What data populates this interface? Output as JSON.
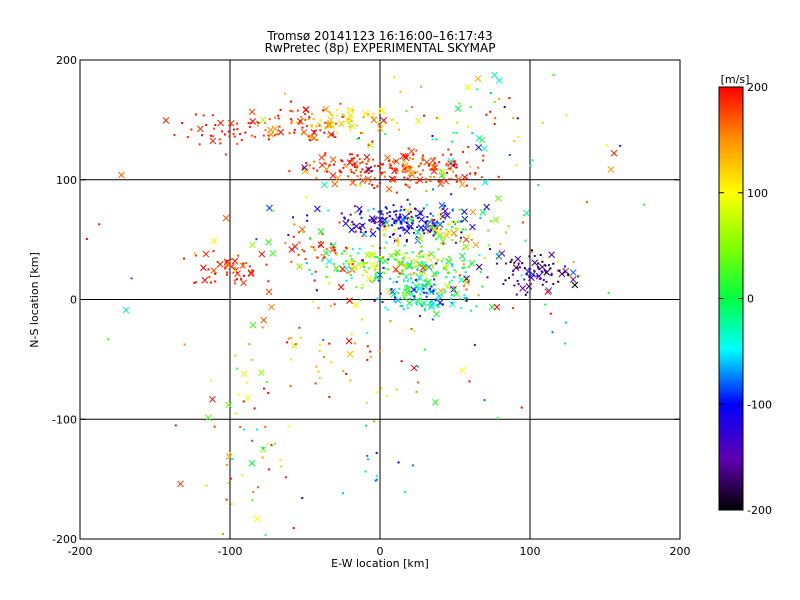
{
  "chart_data": {
    "type": "scatter",
    "title": "Tromsø 20141123 16:16:00–16:17:43",
    "subtitle": "RwPretec (8p) EXPERIMENTAL SKYMAP",
    "xlabel": "E-W location [km]",
    "ylabel": "N-S location [km]",
    "xlim": [
      -200,
      200
    ],
    "ylim": [
      -200,
      200
    ],
    "xticks": [
      "-200",
      "-100",
      "0",
      "100",
      "200"
    ],
    "yticks": [
      "-200",
      "-100",
      "0",
      "100",
      "200"
    ],
    "grid": true,
    "colorbar": {
      "label": "[m/s]",
      "range": [
        -200,
        200
      ],
      "ticks": [
        "200",
        "100",
        "0",
        "-100",
        "-200"
      ],
      "colormap": "rainbow (black at -200, blue at -100, green at 0, yellow at 100, red at 200)"
    },
    "marker_types": [
      "small dot",
      "x cross"
    ],
    "clusters": [
      {
        "x": 0,
        "y": 110,
        "sx": 28,
        "sy": 7,
        "v": 185,
        "sv": 20,
        "n": 160
      },
      {
        "x": 35,
        "y": 105,
        "sx": 18,
        "sy": 6,
        "v": 175,
        "sv": 25,
        "n": 60
      },
      {
        "x": -55,
        "y": 145,
        "sx": 16,
        "sy": 8,
        "v": 175,
        "sv": 25,
        "n": 70
      },
      {
        "x": -25,
        "y": 150,
        "sx": 18,
        "sy": 6,
        "v": 125,
        "sv": 25,
        "n": 60
      },
      {
        "x": -110,
        "y": 140,
        "sx": 14,
        "sy": 7,
        "v": 190,
        "sv": 10,
        "n": 40
      },
      {
        "x": 15,
        "y": 65,
        "sx": 20,
        "sy": 7,
        "v": -115,
        "sv": 25,
        "n": 170
      },
      {
        "x": 50,
        "y": 60,
        "sx": 15,
        "sy": 10,
        "v": 60,
        "sv": 60,
        "n": 60
      },
      {
        "x": 15,
        "y": 28,
        "sx": 26,
        "sy": 9,
        "v": 40,
        "sv": 70,
        "n": 230
      },
      {
        "x": 30,
        "y": 5,
        "sx": 15,
        "sy": 8,
        "v": -40,
        "sv": 40,
        "n": 130
      },
      {
        "x": 105,
        "y": 22,
        "sx": 14,
        "sy": 8,
        "v": -155,
        "sv": 35,
        "n": 80
      },
      {
        "x": -100,
        "y": 25,
        "sx": 14,
        "sy": 9,
        "v": 185,
        "sv": 15,
        "n": 50
      },
      {
        "x": -45,
        "y": 40,
        "sx": 15,
        "sy": 10,
        "v": 180,
        "sv": 20,
        "n": 40
      },
      {
        "x": 60,
        "y": 140,
        "sx": 40,
        "sy": 35,
        "v": 80,
        "sv": 100,
        "n": 60
      },
      {
        "x": -20,
        "y": -45,
        "sx": 35,
        "sy": 25,
        "v": 160,
        "sv": 60,
        "n": 50
      },
      {
        "x": -90,
        "y": -130,
        "sx": 18,
        "sy": 50,
        "v": 100,
        "sv": 80,
        "n": 60
      },
      {
        "x": -10,
        "y": -140,
        "sx": 12,
        "sy": 20,
        "v": -50,
        "sv": 40,
        "n": 12
      },
      {
        "x": 0,
        "y": 40,
        "sx": 75,
        "sy": 55,
        "v": 60,
        "sv": 110,
        "n": 150
      }
    ]
  }
}
